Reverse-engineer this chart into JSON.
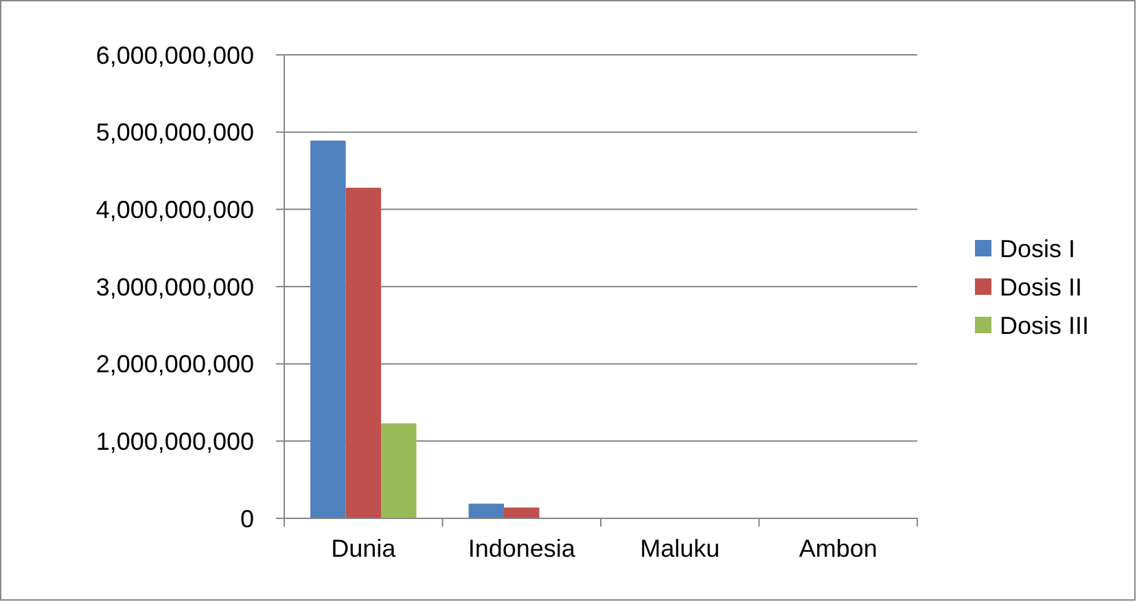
{
  "chart_data": {
    "type": "bar",
    "categories": [
      "Dunia",
      "Indonesia",
      "Maluku",
      "Ambon"
    ],
    "series": [
      {
        "name": "Dosis I",
        "color": "#4f81bd",
        "values": [
          4890000000,
          190000000,
          0,
          0
        ]
      },
      {
        "name": "Dosis II",
        "color": "#c0504d",
        "values": [
          4280000000,
          140000000,
          0,
          0
        ]
      },
      {
        "name": "Dosis III",
        "color": "#9bbb59",
        "values": [
          1230000000,
          0,
          0,
          0
        ]
      }
    ],
    "ylim": [
      0,
      6000000000
    ],
    "yticks": [
      {
        "value": 0,
        "label": "0"
      },
      {
        "value": 1000000000,
        "label": "1,000,000,000"
      },
      {
        "value": 2000000000,
        "label": "2,000,000,000"
      },
      {
        "value": 3000000000,
        "label": "3,000,000,000"
      },
      {
        "value": 4000000000,
        "label": "4,000,000,000"
      },
      {
        "value": 5000000000,
        "label": "5,000,000,000"
      },
      {
        "value": 6000000000,
        "label": "6,000,000,000"
      }
    ],
    "grid": "y",
    "legend": "right"
  }
}
